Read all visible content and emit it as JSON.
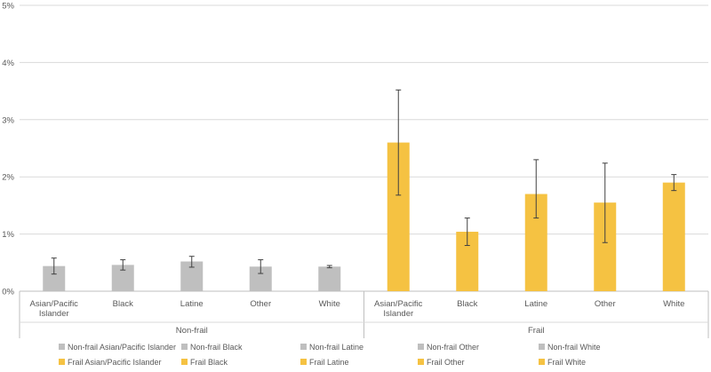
{
  "chart_data": {
    "type": "bar",
    "title": "",
    "xlabel": "",
    "ylabel": "",
    "ylim": [
      0,
      5
    ],
    "y_ticks": [
      "0%",
      "1%",
      "2%",
      "3%",
      "4%",
      "5%"
    ],
    "grid": true,
    "categories": [
      "Asian/Pacific Islander",
      "Black",
      "Latine",
      "Other",
      "White"
    ],
    "groups": [
      {
        "name": "Non-frail",
        "color": "#bfbfbf",
        "bars": [
          {
            "category": "Asian/Pacific Islander",
            "value": 0.44,
            "err_low": 0.3,
            "err_high": 0.58,
            "legend": "Non-frail Asian/Pacific Islander"
          },
          {
            "category": "Black",
            "value": 0.46,
            "err_low": 0.37,
            "err_high": 0.55,
            "legend": "Non-frail Black"
          },
          {
            "category": "Latine",
            "value": 0.52,
            "err_low": 0.42,
            "err_high": 0.61,
            "legend": "Non-frail Latine"
          },
          {
            "category": "Other",
            "value": 0.43,
            "err_low": 0.31,
            "err_high": 0.55,
            "legend": "Non-frail Other"
          },
          {
            "category": "White",
            "value": 0.43,
            "err_low": 0.41,
            "err_high": 0.45,
            "legend": "Non-frail White"
          }
        ]
      },
      {
        "name": "Frail",
        "color": "#f5c242",
        "bars": [
          {
            "category": "Asian/Pacific Islander",
            "value": 2.6,
            "err_low": 1.68,
            "err_high": 3.52,
            "legend": "Frail Asian/Pacific Islander"
          },
          {
            "category": "Black",
            "value": 1.04,
            "err_low": 0.8,
            "err_high": 1.28,
            "legend": "Frail Black"
          },
          {
            "category": "Latine",
            "value": 1.7,
            "err_low": 1.28,
            "err_high": 2.3,
            "legend": "Frail Latine"
          },
          {
            "category": "Other",
            "value": 1.55,
            "err_low": 0.85,
            "err_high": 2.24,
            "legend": "Frail Other"
          },
          {
            "category": "White",
            "value": 1.9,
            "err_low": 1.76,
            "err_high": 2.04,
            "legend": "Frail White"
          }
        ]
      }
    ],
    "legend_position": "bottom"
  }
}
